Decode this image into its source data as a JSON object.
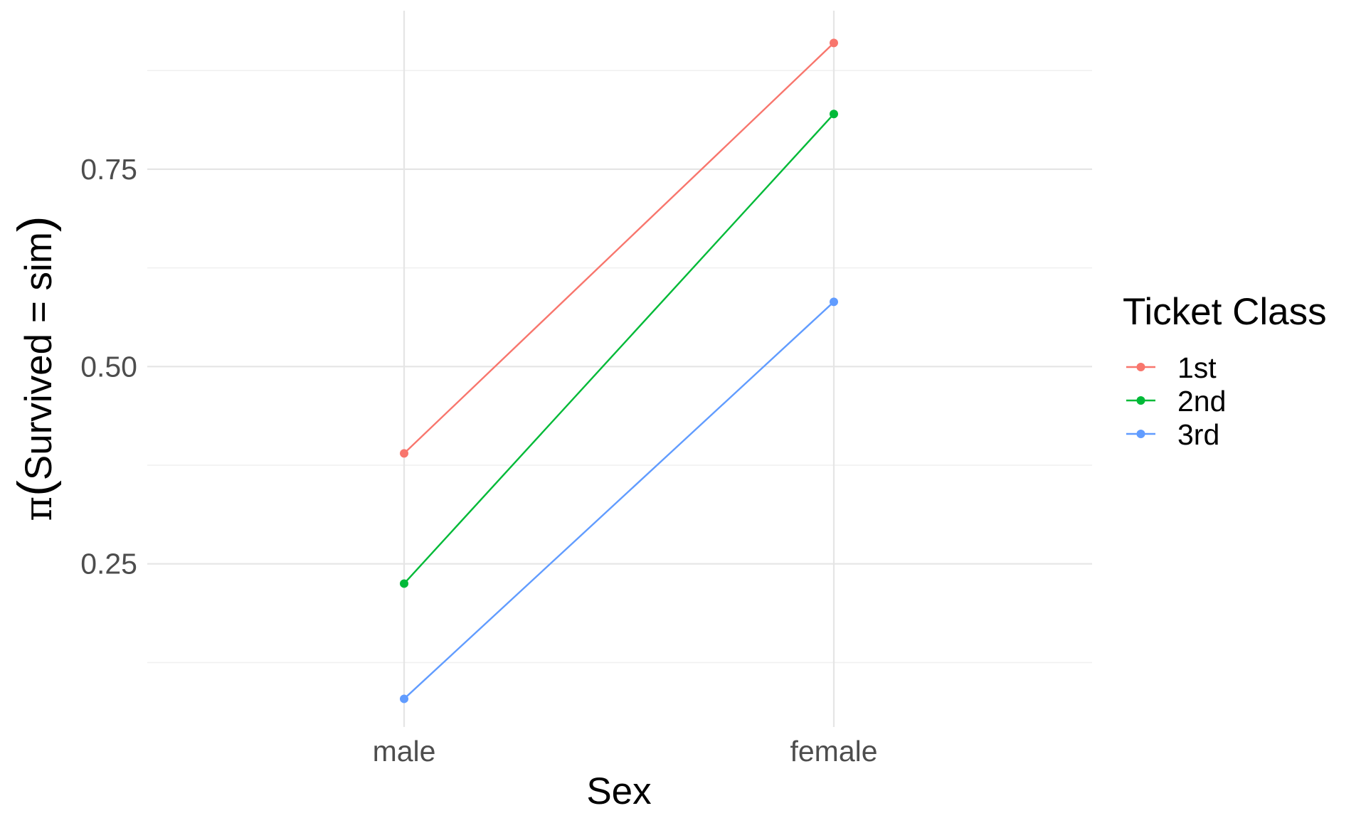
{
  "chart_data": {
    "type": "line",
    "x_axis": {
      "title": "Sex",
      "categories": [
        "male",
        "female"
      ]
    },
    "y_axis": {
      "title_symbol": "π",
      "title_text": "Survived = sim",
      "ylim": [
        0.08,
        0.94
      ],
      "major_ticks": [
        0.25,
        0.5,
        0.75
      ],
      "tick_labels": [
        "0.25",
        "0.50",
        "0.75"
      ],
      "minor_ticks": [
        0.125,
        0.375,
        0.625,
        0.875
      ]
    },
    "grid": true,
    "legend": {
      "title": "Ticket Class",
      "placement": "right"
    },
    "series": [
      {
        "name": "1st",
        "color": "#f8766d",
        "values": [
          0.39,
          0.91
        ]
      },
      {
        "name": "2nd",
        "color": "#00ba38",
        "values": [
          0.225,
          0.82
        ]
      },
      {
        "name": "3rd",
        "color": "#619cff",
        "values": [
          0.079,
          0.582
        ]
      }
    ]
  }
}
